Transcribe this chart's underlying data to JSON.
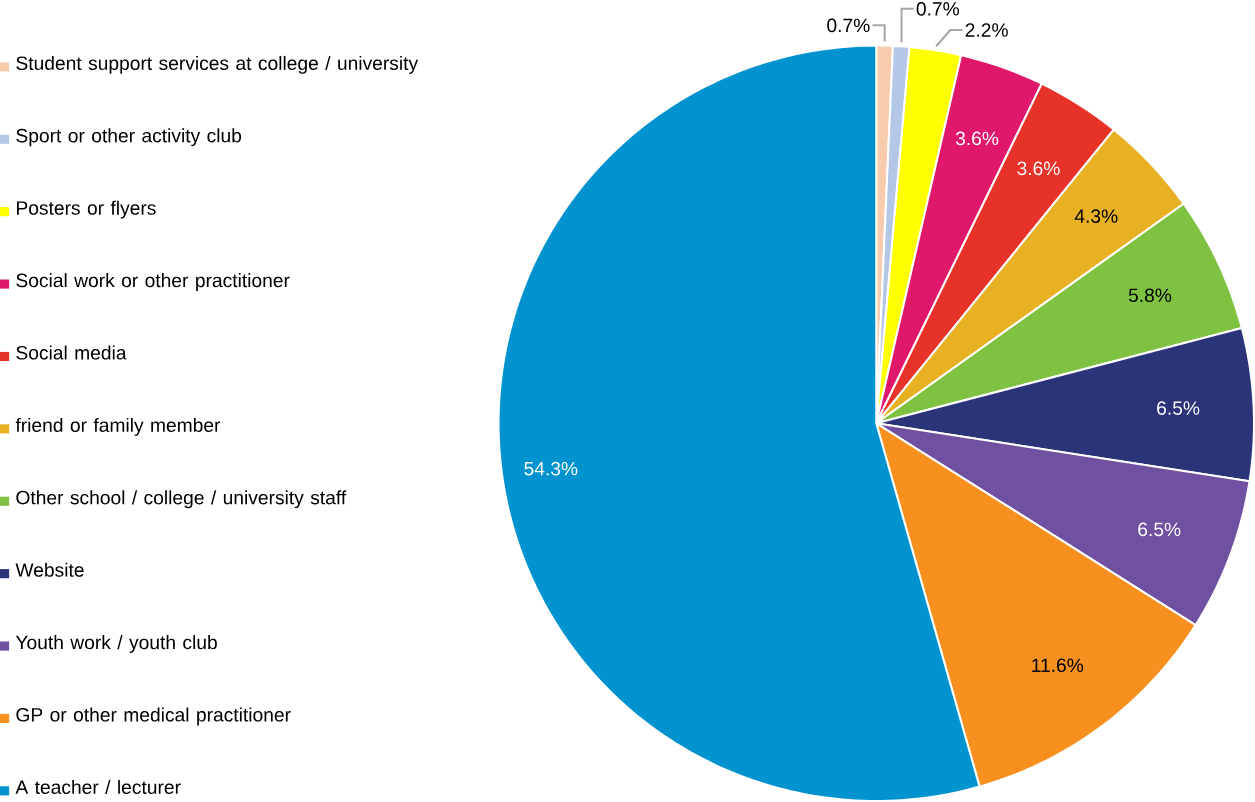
{
  "chart_data": {
    "type": "pie",
    "categories": [
      "Student support services at college / university",
      "Sport or other activity club",
      "Posters or flyers",
      "Social work or other practitioner",
      "Social media",
      "friend or family member",
      "Other school / college / university staff",
      "Website",
      "Youth work / youth club",
      "GP or other medical practitioner",
      "A teacher / lecturer"
    ],
    "values": [
      0.7,
      0.7,
      2.2,
      3.6,
      3.6,
      4.3,
      5.8,
      6.5,
      6.5,
      11.6,
      54.3
    ],
    "colors": [
      "#f8cbad",
      "#b4c7e7",
      "#ffff00",
      "#e0186c",
      "#e63228",
      "#e8b023",
      "#7fc241",
      "#2b3479",
      "#7050a0",
      "#f7901e",
      "#0093d0"
    ],
    "value_labels": [
      "0.7%",
      "0.7%",
      "2.2%",
      "3.6%",
      "3.6%",
      "4.3%",
      "5.8%",
      "6.5%",
      "6.5%",
      "11.6%",
      "54.3%"
    ],
    "legend": "left"
  }
}
